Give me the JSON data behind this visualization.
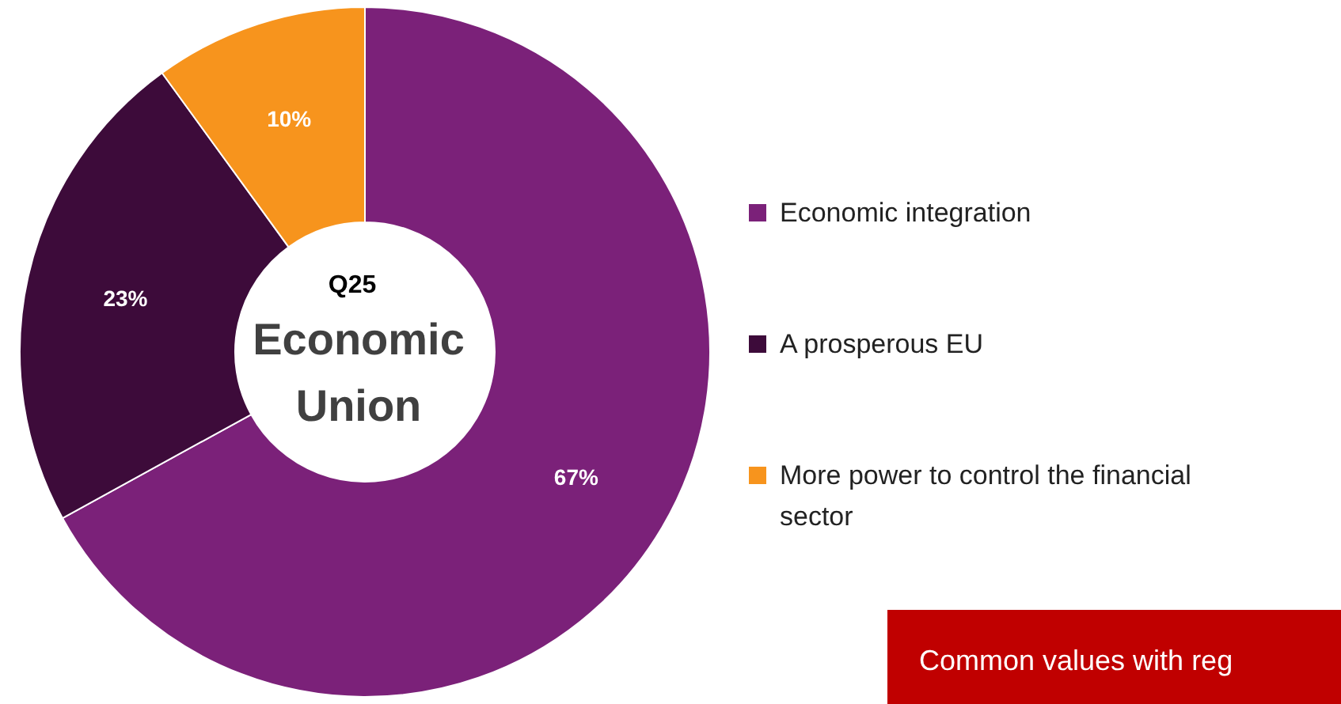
{
  "chart_data": {
    "type": "donut",
    "title": "Q25",
    "subtitle": "Economic Union",
    "categories": [
      "Economic integration",
      "A prosperous EU",
      "More power to control the financial sector"
    ],
    "values": [
      67,
      23,
      10
    ],
    "colors": [
      "#7b2179",
      "#3d0b3a",
      "#f7941d"
    ],
    "value_labels": [
      "67%",
      "23%",
      "10%"
    ],
    "legend": "right",
    "annotations": [
      "Common values with reg"
    ]
  }
}
